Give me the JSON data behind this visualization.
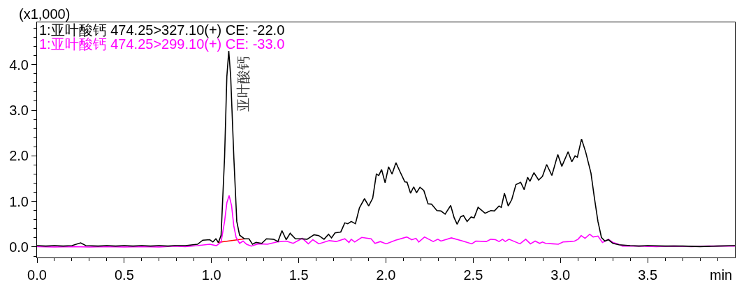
{
  "chart_data": {
    "type": "line",
    "ylabel": "(x1,000)",
    "xlabel": "min",
    "xlim": [
      0,
      4.0
    ],
    "ylim": [
      -0.23,
      4.93
    ],
    "xticks": [
      {
        "value": 0,
        "label": "0.0"
      },
      {
        "value": 0.1,
        "label": null
      },
      {
        "value": 0.2,
        "label": null
      },
      {
        "value": 0.3,
        "label": null
      },
      {
        "value": 0.4,
        "label": null
      },
      0.5,
      {
        "value": 0.6,
        "label": null
      },
      {
        "value": 0.7,
        "label": null
      },
      {
        "value": 0.8,
        "label": null
      },
      {
        "value": 0.9,
        "label": null
      },
      {
        "value": 1,
        "label": "1.0"
      },
      {
        "value": 1.1,
        "label": null
      },
      {
        "value": 1.2,
        "label": null
      },
      {
        "value": 1.3,
        "label": null
      },
      {
        "value": 1.4,
        "label": null
      },
      1.5,
      {
        "value": 1.6,
        "label": null
      },
      {
        "value": 1.7,
        "label": null
      },
      {
        "value": 1.8,
        "label": null
      },
      {
        "value": 1.9,
        "label": null
      },
      {
        "value": 2,
        "label": "2.0"
      },
      {
        "value": 2.1,
        "label": null
      },
      {
        "value": 2.2,
        "label": null
      },
      {
        "value": 2.3,
        "label": null
      },
      {
        "value": 2.4,
        "label": null
      },
      2.5,
      {
        "value": 2.6,
        "label": null
      },
      {
        "value": 2.7,
        "label": null
      },
      {
        "value": 2.8,
        "label": null
      },
      {
        "value": 2.9,
        "label": null
      },
      {
        "value": 3,
        "label": "3.0"
      },
      {
        "value": 3.1,
        "label": null
      },
      {
        "value": 3.2,
        "label": null
      },
      {
        "value": 3.3,
        "label": null
      },
      {
        "value": 3.4,
        "label": null
      },
      3.5,
      {
        "value": 3.6,
        "label": null
      },
      {
        "value": 3.7,
        "label": null
      },
      {
        "value": 3.8,
        "label": null
      },
      {
        "value": 3.9,
        "label": null
      }
    ],
    "yticks": [
      {
        "value": -0.2,
        "label": null
      },
      {
        "value": 0,
        "label": "0.0"
      },
      {
        "value": 0.2,
        "label": null
      },
      {
        "value": 0.4,
        "label": null
      },
      {
        "value": 0.6,
        "label": null
      },
      {
        "value": 0.8,
        "label": null
      },
      {
        "value": 1,
        "label": "1.0"
      },
      {
        "value": 1.2,
        "label": null
      },
      {
        "value": 1.4,
        "label": null
      },
      {
        "value": 1.6,
        "label": null
      },
      {
        "value": 1.8,
        "label": null
      },
      {
        "value": 2,
        "label": "2.0"
      },
      {
        "value": 2.2,
        "label": null
      },
      {
        "value": 2.4,
        "label": null
      },
      {
        "value": 2.6,
        "label": null
      },
      {
        "value": 2.8,
        "label": null
      },
      {
        "value": 3,
        "label": "3.0"
      },
      {
        "value": 3.2,
        "label": null
      },
      {
        "value": 3.4,
        "label": null
      },
      {
        "value": 3.6,
        "label": null
      },
      {
        "value": 3.8,
        "label": null
      },
      {
        "value": 4,
        "label": "4.0"
      },
      {
        "value": 4.2,
        "label": null
      },
      {
        "value": 4.4,
        "label": null
      },
      {
        "value": 4.6,
        "label": null
      },
      {
        "value": 4.8,
        "label": null
      }
    ],
    "annotations": [
      {
        "text": "亚叶酸钙",
        "x": 1.099,
        "y": 4.3
      }
    ],
    "series": [
      {
        "name": "1:亚叶酸钙 474.25>327.10(+) CE: -22.0",
        "color": "#000000",
        "x": [
          0.0,
          0.05,
          0.1,
          0.15,
          0.2,
          0.25,
          0.28,
          0.35,
          0.4,
          0.45,
          0.5,
          0.55,
          0.6,
          0.65,
          0.7,
          0.75,
          0.79,
          0.85,
          0.92,
          0.95,
          0.99,
          1.008,
          1.025,
          1.04,
          1.055,
          1.075,
          1.088,
          1.099,
          1.11,
          1.128,
          1.145,
          1.161,
          1.188,
          1.215,
          1.235,
          1.255,
          1.288,
          1.315,
          1.355,
          1.381,
          1.404,
          1.428,
          1.451,
          1.481,
          1.515,
          1.548,
          1.588,
          1.615,
          1.645,
          1.671,
          1.688,
          1.708,
          1.741,
          1.764,
          1.781,
          1.801,
          1.825,
          1.848,
          1.877,
          1.901,
          1.924,
          1.945,
          1.959,
          1.975,
          1.995,
          2.015,
          2.035,
          2.057,
          2.081,
          2.108,
          2.121,
          2.141,
          2.159,
          2.175,
          2.195,
          2.217,
          2.241,
          2.261,
          2.292,
          2.315,
          2.339,
          2.371,
          2.391,
          2.408,
          2.428,
          2.444,
          2.465,
          2.488,
          2.505,
          2.528,
          2.568,
          2.601,
          2.621,
          2.648,
          2.661,
          2.679,
          2.701,
          2.721,
          2.745,
          2.772,
          2.792,
          2.812,
          2.825,
          2.848,
          2.875,
          2.897,
          2.921,
          2.951,
          2.985,
          3.008,
          3.044,
          3.065,
          3.084,
          3.097,
          3.121,
          3.145,
          3.175,
          3.195,
          3.215,
          3.235,
          3.255,
          3.275,
          3.301,
          3.335,
          3.4,
          3.45,
          3.5,
          3.6,
          3.7,
          3.8,
          3.9,
          4.0
        ],
        "values": [
          0.03,
          0.02,
          0.03,
          0.02,
          0.03,
          0.09,
          0.03,
          0.02,
          0.03,
          0.02,
          0.03,
          0.02,
          0.03,
          0.02,
          0.03,
          0.02,
          0.03,
          0.03,
          0.06,
          0.15,
          0.16,
          0.11,
          0.18,
          0.1,
          0.26,
          1.97,
          3.74,
          4.3,
          3.74,
          1.97,
          0.56,
          0.26,
          0.18,
          0.18,
          0.06,
          0.1,
          0.08,
          0.18,
          0.17,
          0.12,
          0.36,
          0.16,
          0.3,
          0.18,
          0.18,
          0.17,
          0.27,
          0.25,
          0.17,
          0.28,
          0.2,
          0.31,
          0.33,
          0.53,
          0.51,
          0.56,
          0.51,
          0.86,
          1.06,
          0.9,
          1.07,
          1.6,
          1.57,
          1.7,
          1.41,
          1.76,
          1.6,
          1.85,
          1.65,
          1.43,
          1.42,
          1.18,
          1.32,
          1.19,
          1.31,
          1.24,
          0.95,
          0.94,
          0.8,
          0.79,
          0.72,
          0.91,
          0.64,
          0.5,
          0.66,
          0.69,
          0.56,
          0.66,
          0.64,
          0.87,
          0.74,
          0.8,
          0.79,
          0.9,
          0.87,
          1.18,
          0.9,
          1.04,
          1.37,
          1.42,
          1.26,
          1.53,
          1.44,
          1.63,
          1.47,
          1.55,
          1.81,
          1.57,
          2.03,
          1.77,
          2.09,
          1.87,
          2.0,
          1.97,
          2.37,
          2.08,
          1.62,
          1.07,
          0.56,
          0.21,
          0.13,
          0.16,
          0.08,
          0.05,
          0.03,
          0.02,
          0.03,
          0.02,
          0.02,
          0.01,
          0.02,
          0.03
        ]
      },
      {
        "name": "1:亚叶酸钙 474.25>299.10(+) CE: -33.0",
        "color": "#ff00ff",
        "x": [
          0.0,
          0.1,
          0.2,
          0.3,
          0.4,
          0.5,
          0.6,
          0.7,
          0.788,
          0.85,
          0.92,
          0.99,
          1.028,
          1.055,
          1.075,
          1.088,
          1.101,
          1.115,
          1.128,
          1.141,
          1.161,
          1.181,
          1.201,
          1.228,
          1.268,
          1.321,
          1.375,
          1.428,
          1.468,
          1.521,
          1.555,
          1.581,
          1.615,
          1.675,
          1.715,
          1.764,
          1.788,
          1.801,
          1.821,
          1.861,
          1.915,
          1.937,
          1.968,
          2.001,
          2.055,
          2.119,
          2.148,
          2.172,
          2.188,
          2.221,
          2.271,
          2.297,
          2.315,
          2.375,
          2.441,
          2.492,
          2.515,
          2.575,
          2.601,
          2.628,
          2.648,
          2.668,
          2.684,
          2.705,
          2.768,
          2.801,
          2.828,
          2.855,
          2.881,
          2.897,
          2.915,
          2.955,
          2.988,
          3.015,
          3.055,
          3.081,
          3.101,
          3.119,
          3.141,
          3.168,
          3.188,
          3.215,
          3.241,
          3.275,
          3.301,
          3.328,
          3.355,
          3.45,
          3.55,
          3.65,
          3.75,
          3.85,
          4.0
        ],
        "values": [
          0.01,
          0.0,
          0.01,
          0.0,
          0.01,
          0.0,
          0.01,
          0.0,
          0.02,
          0.01,
          0.03,
          0.06,
          0.03,
          0.11,
          0.56,
          0.97,
          1.13,
          0.91,
          0.46,
          0.21,
          0.08,
          0.13,
          0.06,
          0.02,
          0.07,
          0.06,
          0.11,
          0.13,
          0.08,
          0.19,
          0.07,
          0.16,
          0.07,
          0.14,
          0.12,
          0.18,
          0.1,
          0.17,
          0.11,
          0.21,
          0.18,
          0.08,
          0.12,
          0.07,
          0.15,
          0.22,
          0.16,
          0.19,
          0.11,
          0.22,
          0.12,
          0.17,
          0.13,
          0.2,
          0.13,
          0.07,
          0.13,
          0.12,
          0.17,
          0.16,
          0.12,
          0.17,
          0.12,
          0.17,
          0.07,
          0.17,
          0.07,
          0.13,
          0.08,
          0.11,
          0.08,
          0.07,
          0.06,
          0.11,
          0.12,
          0.13,
          0.17,
          0.25,
          0.19,
          0.28,
          0.22,
          0.24,
          0.1,
          0.17,
          0.1,
          0.07,
          0.02,
          0.02,
          0.01,
          0.02,
          0.01,
          0.02,
          0.02
        ]
      },
      {
        "type": "line",
        "color": "#ff0000",
        "x": [
          1.035,
          1.19
        ],
        "values": [
          0.1,
          0.18
        ]
      }
    ]
  }
}
